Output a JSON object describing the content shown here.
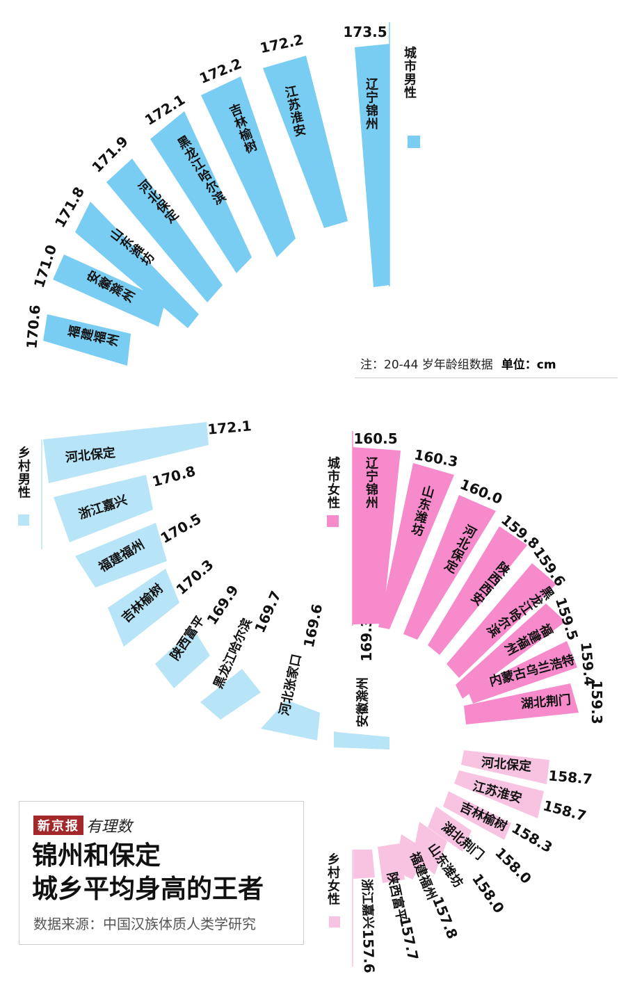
{
  "note": {
    "text": "注：20-44 岁年龄组数据",
    "unit": "单位：cm"
  },
  "title_box": {
    "brand_name": "新京报",
    "brand_column": "有理数",
    "headline_line1": "锦州和保定",
    "headline_line2": "城乡平均身高的王者",
    "source": "数据来源：中国汉族体质人类学研究"
  },
  "colors": {
    "urban_male": "#79cdf2",
    "rural_male": "#b7e4f6",
    "urban_female": "#f68acb",
    "rural_female": "#f8c3e0",
    "brand_red": "#a3282a"
  },
  "chart_data": [
    {
      "type": "bar",
      "title": "城市男性",
      "unit": "cm",
      "categories": [
        "辽宁锦州",
        "江苏淮安",
        "吉林榆树",
        "黑龙江哈尔滨",
        "河北保定",
        "山东潍坊",
        "安徽滁州",
        "福建福州"
      ],
      "values": [
        173.5,
        172.2,
        172.2,
        172.1,
        171.9,
        171.8,
        171.0,
        170.6
      ]
    },
    {
      "type": "bar",
      "title": "乡村男性",
      "unit": "cm",
      "categories": [
        "河北保定",
        "浙江嘉兴",
        "福建福州",
        "吉林榆树",
        "陕西富平",
        "黑龙江哈尔滨",
        "河北张家口",
        "安徽滁州"
      ],
      "values": [
        172.1,
        170.8,
        170.5,
        170.3,
        169.9,
        169.7,
        169.6,
        169.3
      ]
    },
    {
      "type": "bar",
      "title": "城市女性",
      "unit": "cm",
      "categories": [
        "辽宁锦州",
        "山东潍坊",
        "河北保定",
        "陕西西安",
        "黑龙江哈尔滨",
        "福建福州",
        "内蒙古乌兰浩特",
        "湖北荆门"
      ],
      "values": [
        160.5,
        160.3,
        160.0,
        159.8,
        159.6,
        159.5,
        159.4,
        159.3
      ]
    },
    {
      "type": "bar",
      "title": "乡村女性",
      "unit": "cm",
      "categories": [
        "河北保定",
        "江苏淮安",
        "吉林榆树",
        "湖北荆门",
        "山东潍坊",
        "福建福州",
        "陕西富平",
        "浙江嘉兴"
      ],
      "values": [
        158.7,
        158.7,
        158.3,
        158.0,
        158.0,
        157.8,
        157.7,
        157.6
      ]
    }
  ]
}
